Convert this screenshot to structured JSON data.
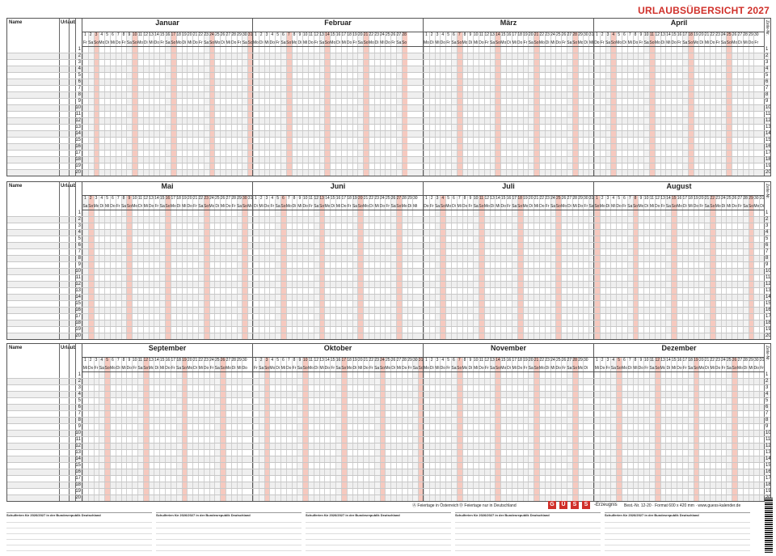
{
  "title": "URLAUBSÜBERSICHT 2027",
  "labels": {
    "name": "Name",
    "urlaub": "Urlaub",
    "zeile": "Zeile-Nr."
  },
  "rows": 20,
  "blocks": [
    {
      "months": [
        {
          "name": "Januar",
          "days": 31,
          "start": 4
        },
        {
          "name": "Februar",
          "days": 28,
          "start": 0
        },
        {
          "name": "März",
          "days": 31,
          "start": 0
        },
        {
          "name": "April",
          "days": 30,
          "start": 3
        }
      ]
    },
    {
      "months": [
        {
          "name": "Mai",
          "days": 31,
          "start": 5
        },
        {
          "name": "Juni",
          "days": 30,
          "start": 1
        },
        {
          "name": "Juli",
          "days": 31,
          "start": 3
        },
        {
          "name": "August",
          "days": 31,
          "start": 6
        }
      ]
    },
    {
      "months": [
        {
          "name": "September",
          "days": 30,
          "start": 2
        },
        {
          "name": "Oktober",
          "days": 31,
          "start": 4
        },
        {
          "name": "November",
          "days": 30,
          "start": 0
        },
        {
          "name": "Dezember",
          "days": 31,
          "start": 2
        }
      ]
    }
  ],
  "legend": {
    "at": "Feiertage in Österreich",
    "de": "Feiertage nur in Deutschland"
  },
  "brand": {
    "letters": [
      "G",
      "Ü",
      "S",
      "S"
    ],
    "suffix": "-Erzeugnis",
    "order": "Best.-Nr. 12-20 · Format 600 x 420 mm · www.guess-kalender.de"
  },
  "school_tables": [
    "Schulferien für 2026/2027 in der Bundesrepublik Deutschland",
    "Schulferien für 2026/2027 in der Bundesrepublik Deutschland",
    "Schulferien für 2026/2027 in der Bundesrepublik Deutschland",
    "Schulferien für 2026/2027 in der Bundesrepublik Deutschland",
    "Schulferien für 2026/2027 in der Bundesrepublik Deutschland"
  ],
  "colors": {
    "accent": "#d0302a",
    "sunday": "#f6c9bf"
  }
}
